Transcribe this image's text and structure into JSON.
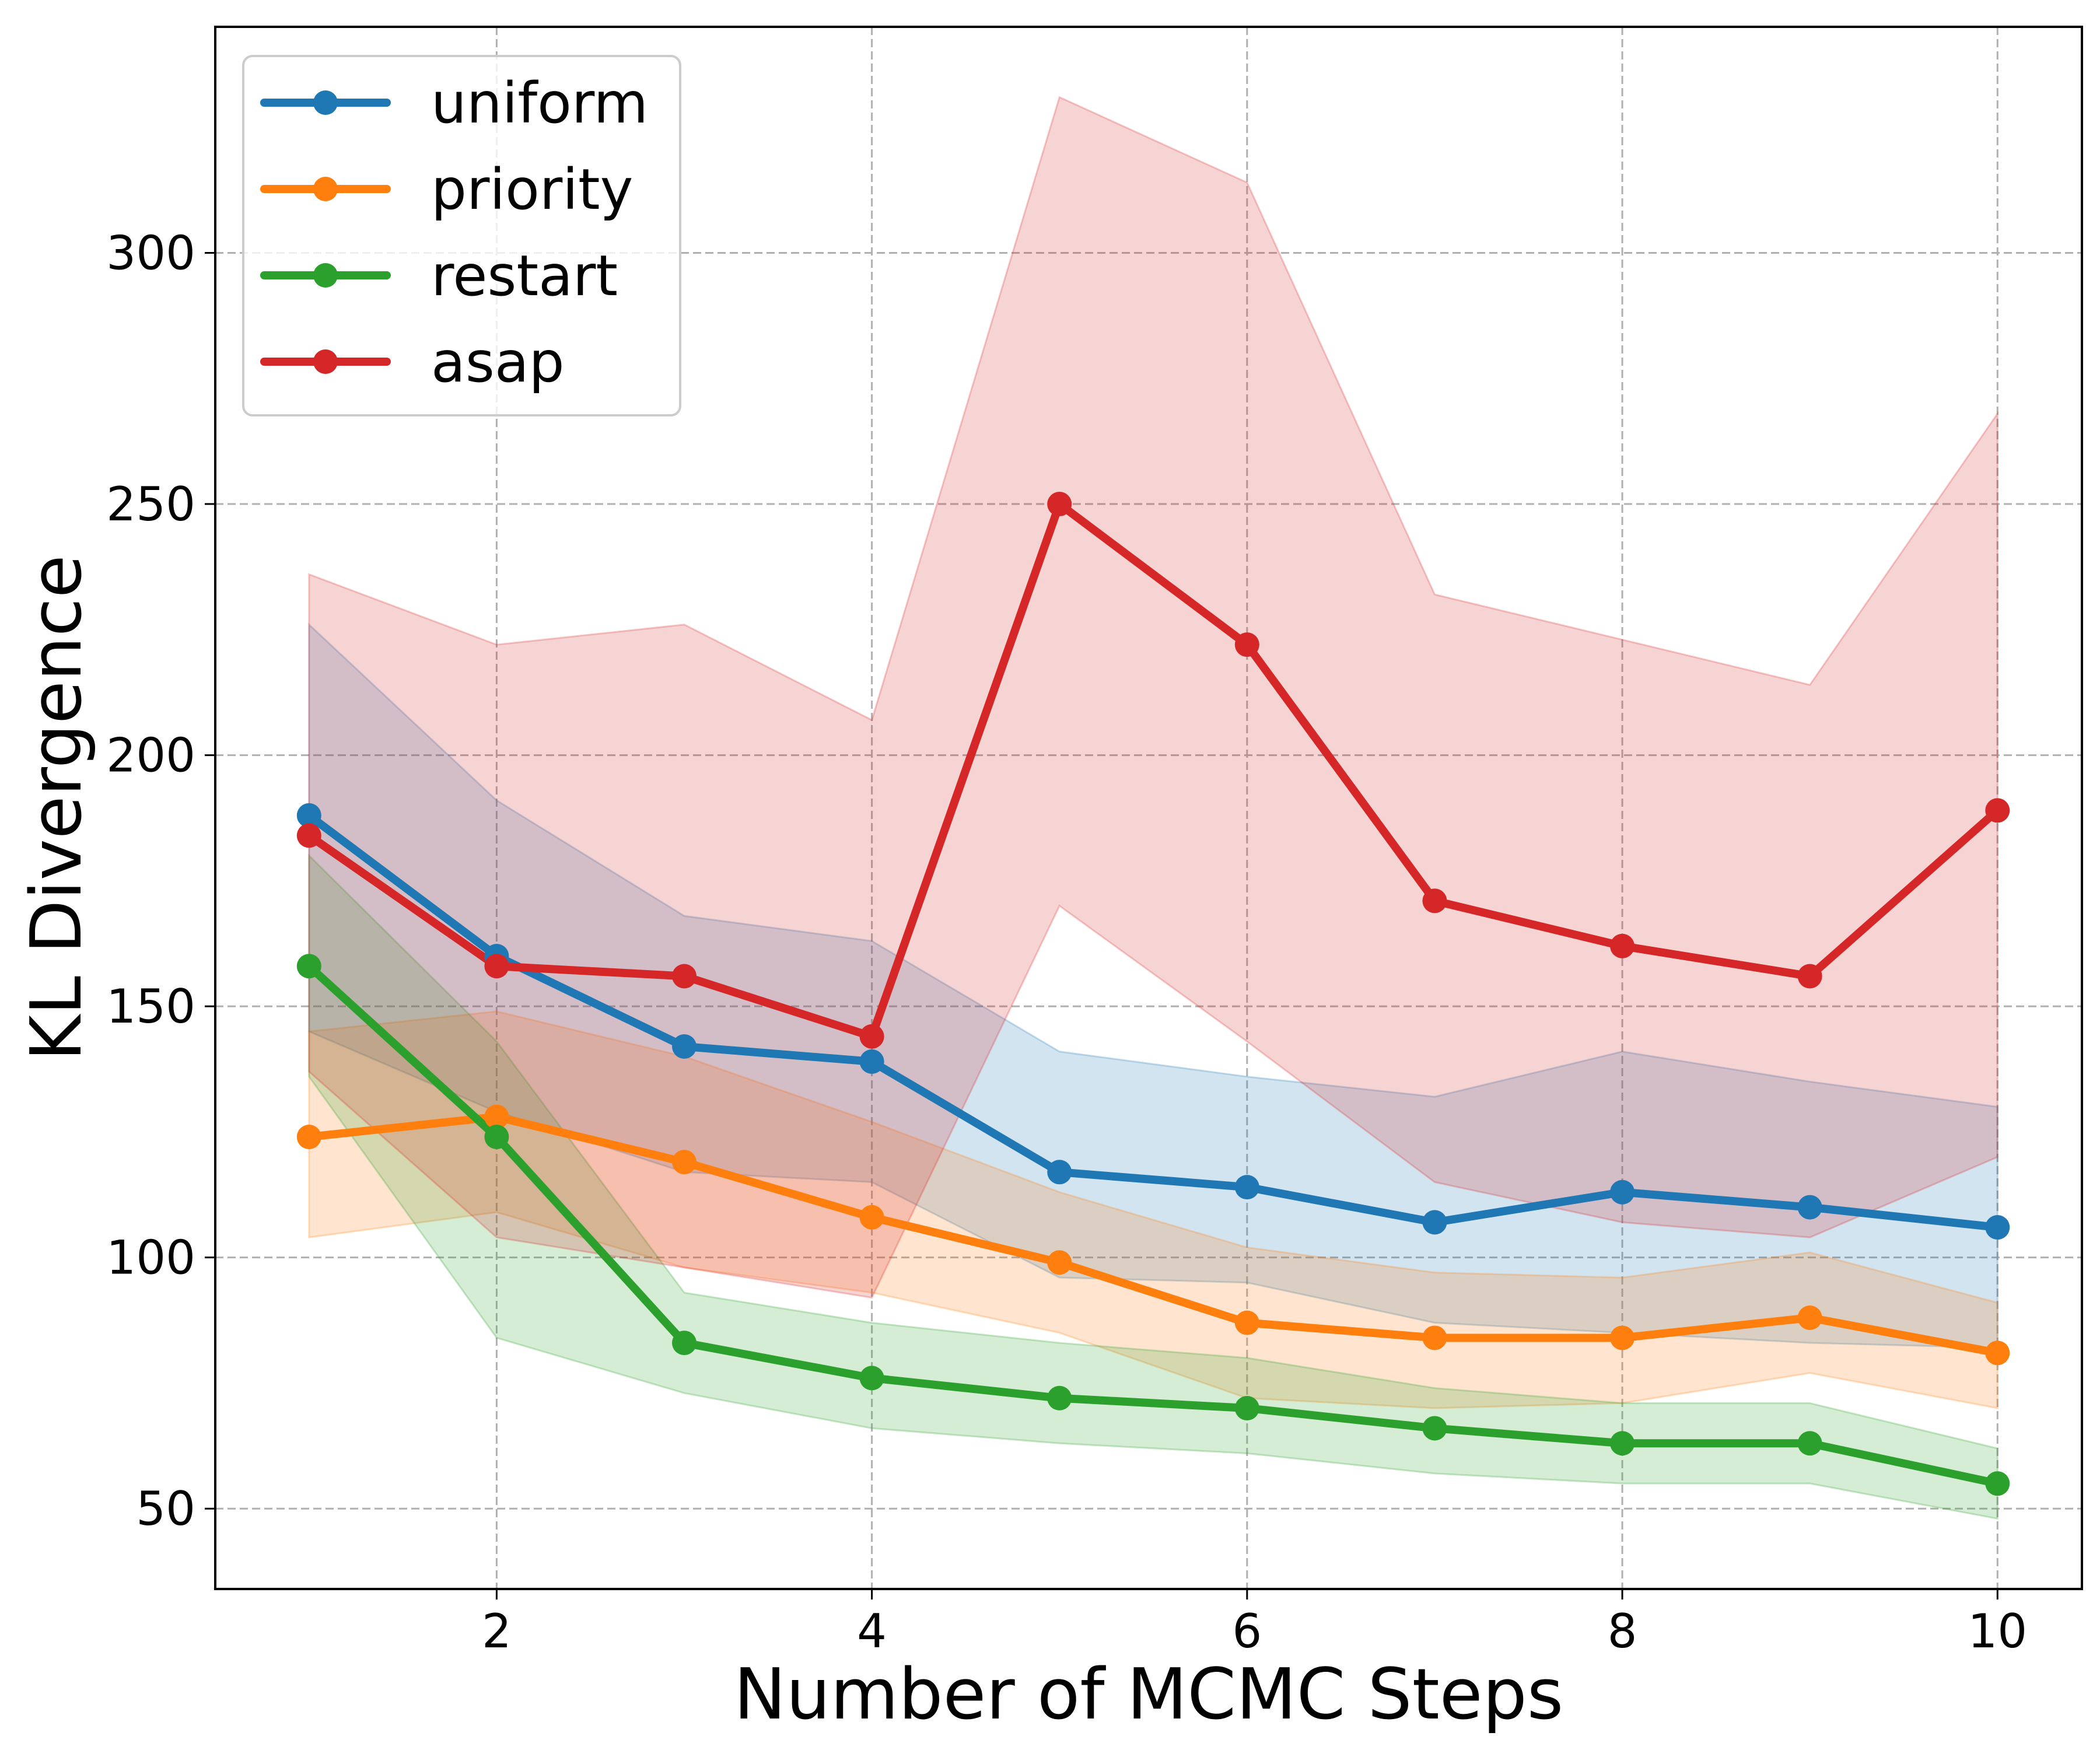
{
  "chart_data": {
    "type": "line",
    "title": "",
    "xlabel": "Number of MCMC Steps",
    "ylabel": "KL Divergence",
    "x": [
      1,
      2,
      3,
      4,
      5,
      6,
      7,
      8,
      9,
      10
    ],
    "xlim": [
      0.5,
      10.45
    ],
    "ylim": [
      34,
      345
    ],
    "xticks": [
      2,
      4,
      6,
      8,
      10
    ],
    "yticks": [
      50,
      100,
      150,
      200,
      250,
      300
    ],
    "grid": true,
    "legend_position": "upper-left",
    "series": [
      {
        "name": "uniform",
        "color": "#1f77b4",
        "values": [
          188,
          160,
          142,
          139,
          117,
          114,
          107,
          113,
          110,
          106
        ],
        "upper": [
          226,
          191,
          168,
          163,
          141,
          136,
          132,
          141,
          135,
          130
        ],
        "lower": [
          145,
          129,
          117,
          115,
          96,
          95,
          87,
          85,
          83,
          82
        ]
      },
      {
        "name": "priority",
        "color": "#ff7f0e",
        "values": [
          124,
          128,
          119,
          108,
          99,
          87,
          84,
          84,
          88,
          81
        ],
        "upper": [
          145,
          149,
          140,
          127,
          113,
          102,
          97,
          96,
          101,
          91
        ],
        "lower": [
          104,
          109,
          98,
          93,
          85,
          72,
          70,
          71,
          77,
          70
        ]
      },
      {
        "name": "restart",
        "color": "#2ca02c",
        "values": [
          158,
          124,
          83,
          76,
          72,
          70,
          66,
          63,
          63,
          55
        ],
        "upper": [
          180,
          143,
          93,
          87,
          83,
          80,
          74,
          71,
          71,
          62
        ],
        "lower": [
          136,
          84,
          73,
          66,
          63,
          61,
          57,
          55,
          55,
          48
        ]
      },
      {
        "name": "asap",
        "color": "#d62728",
        "values": [
          184,
          158,
          156,
          144,
          250,
          222,
          171,
          162,
          156,
          189
        ],
        "upper": [
          236,
          222,
          226,
          207,
          331,
          314,
          232,
          223,
          214,
          268
        ],
        "lower": [
          137,
          104,
          98,
          92,
          170,
          143,
          115,
          107,
          104,
          120
        ]
      }
    ]
  }
}
